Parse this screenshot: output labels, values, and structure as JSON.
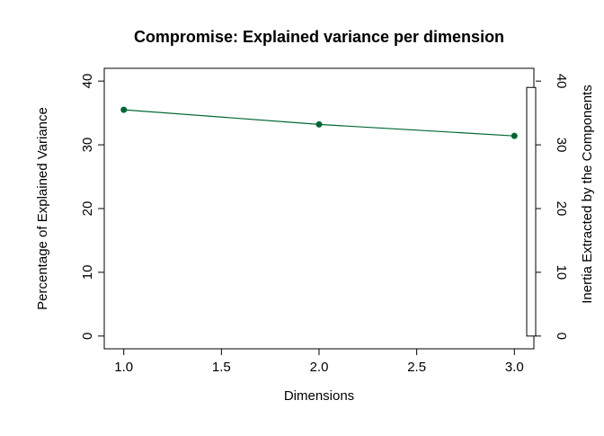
{
  "chart_data": {
    "type": "line",
    "title": "Compromise: Explained variance per dimension",
    "xlabel": "Dimensions",
    "ylabel": "Percentage of Explained Variance",
    "y2label": "Inertia Extracted by the Components",
    "x": [
      1.0,
      2.0,
      3.0
    ],
    "series": [
      {
        "values": [
          35.5,
          33.2,
          31.4
        ],
        "color": "#006633"
      }
    ],
    "xlim": [
      0.9,
      3.1
    ],
    "ylim": [
      -2,
      42
    ],
    "xticks": [
      "1.0",
      "1.5",
      "2.0",
      "2.5",
      "3.0"
    ],
    "yticks": [
      "0",
      "10",
      "20",
      "30",
      "40"
    ],
    "y2ticks": [
      "0",
      "10",
      "20",
      "30",
      "40"
    ],
    "y2_bar_range": [
      0,
      39
    ],
    "grid": false,
    "legend": "none"
  }
}
